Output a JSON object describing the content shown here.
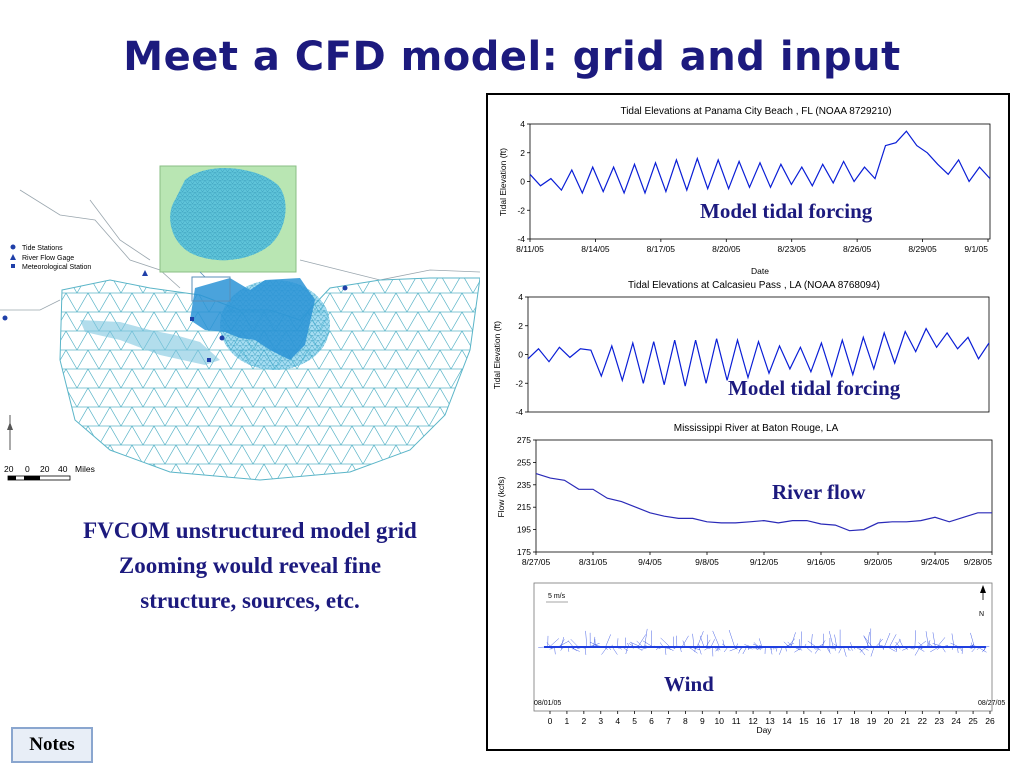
{
  "slide": {
    "title": "Meet a CFD model: grid and input",
    "caption_lines": [
      "FVCOM unstructured model grid",
      "Zooming would reveal fine",
      "structure, sources, etc."
    ],
    "notes_label": "Notes",
    "title_color": "#1c1a7e"
  },
  "map": {
    "legend": [
      "Tide Stations",
      "River Flow Gage",
      "Meteorological Station"
    ],
    "scale_labels": [
      "20",
      "0",
      "20",
      "40",
      "Miles"
    ],
    "mesh_color": "#5bb5c8",
    "inset_bg": "#b9e6b3",
    "station_color": "#1f3fa8"
  },
  "chart_data": [
    {
      "type": "line",
      "title": "Tidal Elevations at Panama City Beach , FL (NOAA 8729210)",
      "xlabel": "Date",
      "ylabel": "Tidal Elevation (ft)",
      "ylim": [
        -4,
        4
      ],
      "yticks": [
        "4",
        "2",
        "0",
        "-2",
        "-4"
      ],
      "xticks": [
        "8/11/05",
        "8/14/05",
        "8/17/05",
        "8/20/05",
        "8/23/05",
        "8/26/05",
        "8/29/05",
        "9/1/05"
      ],
      "annotation": "Model tidal forcing",
      "line_color": "#0a1ed6",
      "x": [
        0,
        0.5,
        1,
        1.5,
        2,
        2.5,
        3,
        3.5,
        4,
        4.5,
        5,
        5.5,
        6,
        6.5,
        7,
        7.5,
        8,
        8.5,
        9,
        9.5,
        10,
        10.5,
        11,
        11.5,
        12,
        12.5,
        13,
        13.5,
        14,
        14.5,
        15,
        15.5,
        16,
        16.5,
        17,
        17.5,
        18,
        18.5,
        19,
        19.5,
        20,
        20.5,
        21,
        21.5,
        22
      ],
      "values": [
        0.5,
        -0.3,
        0.2,
        -0.6,
        0.8,
        -0.8,
        1.0,
        -0.7,
        1.0,
        -0.8,
        1.2,
        -0.8,
        1.3,
        -0.7,
        1.5,
        -0.6,
        1.6,
        -0.5,
        1.5,
        -0.5,
        1.4,
        -0.4,
        1.3,
        -0.4,
        1.2,
        -0.2,
        1.0,
        -0.3,
        1.2,
        -0.1,
        1.4,
        0.0,
        1.0,
        0.2,
        2.5,
        2.7,
        3.5,
        2.5,
        2.0,
        1.2,
        0.5,
        1.5,
        0.0,
        1.0,
        0.2
      ]
    },
    {
      "type": "line",
      "title": "Tidal Elevations at Calcasieu Pass , LA (NOAA 8768094)",
      "ylabel": "Tidal Elevation (ft)",
      "ylim": [
        -4,
        4
      ],
      "yticks": [
        "4",
        "2",
        "0",
        "-2",
        "-4"
      ],
      "annotation": "Model tidal forcing",
      "line_color": "#0a1ed6",
      "x": [
        0,
        0.5,
        1,
        1.5,
        2,
        2.5,
        3,
        3.5,
        4,
        4.5,
        5,
        5.5,
        6,
        6.5,
        7,
        7.5,
        8,
        8.5,
        9,
        9.5,
        10,
        10.5,
        11,
        11.5,
        12,
        12.5,
        13,
        13.5,
        14,
        14.5,
        15,
        15.5,
        16,
        16.5,
        17,
        17.5,
        18,
        18.5,
        19,
        19.5,
        20,
        20.5,
        21,
        21.5,
        22
      ],
      "values": [
        -0.3,
        0.4,
        -0.5,
        0.5,
        -0.2,
        0.4,
        0.3,
        -1.5,
        0.6,
        -1.8,
        0.8,
        -2.0,
        0.9,
        -2.1,
        1.0,
        -2.2,
        1.0,
        -2.0,
        1.1,
        -1.8,
        1.0,
        -1.6,
        0.9,
        -1.3,
        0.6,
        -1.0,
        0.5,
        -1.2,
        0.8,
        -1.5,
        1.0,
        -1.4,
        1.2,
        -1.0,
        1.5,
        -0.6,
        1.6,
        0.2,
        1.8,
        0.5,
        1.5,
        0.4,
        1.2,
        -0.3,
        0.8
      ]
    },
    {
      "type": "line",
      "title": "Mississippi River at Baton Rouge, LA",
      "ylabel": "Flow (kcfs)",
      "ylim": [
        175,
        275
      ],
      "yticks": [
        "275",
        "255",
        "235",
        "215",
        "195",
        "175"
      ],
      "xticks": [
        "8/27/05",
        "8/31/05",
        "9/4/05",
        "9/8/05",
        "9/12/05",
        "9/16/05",
        "9/20/05",
        "9/24/05",
        "9/28/05"
      ],
      "annotation": "River flow",
      "line_color": "#2a2ab8",
      "x": [
        0,
        1,
        2,
        3,
        4,
        5,
        6,
        7,
        8,
        9,
        10,
        11,
        12,
        13,
        14,
        15,
        16,
        17,
        18,
        19,
        20,
        21,
        22,
        23,
        24,
        25,
        26,
        27,
        28,
        29,
        30,
        31,
        32
      ],
      "values": [
        245,
        241,
        239,
        231,
        231,
        223,
        220,
        215,
        210,
        207,
        205,
        205,
        202,
        201,
        201,
        202,
        203,
        201,
        203,
        203,
        200,
        199,
        194,
        195,
        201,
        202,
        202,
        203,
        206,
        202,
        206,
        210,
        210
      ]
    },
    {
      "type": "area",
      "xlabel": "Day",
      "xticks": [
        "0",
        "1",
        "2",
        "3",
        "4",
        "5",
        "6",
        "7",
        "8",
        "9",
        "10",
        "11",
        "12",
        "13",
        "14",
        "15",
        "16",
        "17",
        "18",
        "19",
        "20",
        "21",
        "22",
        "23",
        "24",
        "25",
        "26"
      ],
      "scale_label": "5 m/s",
      "north_label": "N",
      "start_label": "08/01/05",
      "end_label": "08/27/05",
      "annotation": "Wind",
      "line_color": "#1f3fe0"
    }
  ]
}
